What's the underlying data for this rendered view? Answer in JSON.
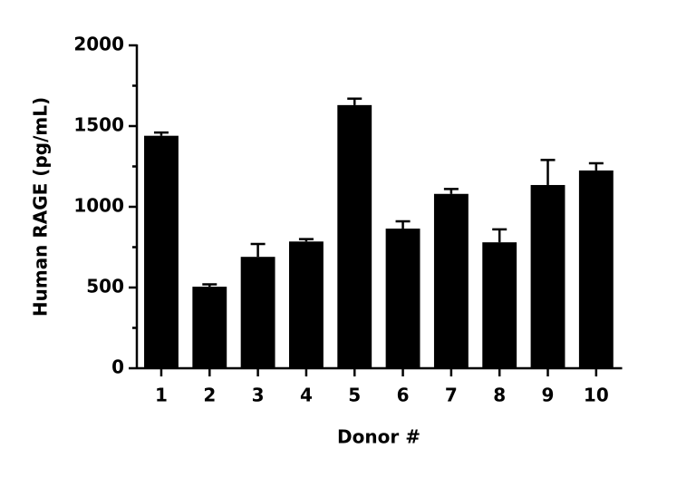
{
  "chart_data": {
    "type": "bar",
    "ylabel": "Human RAGE (pg/mL)",
    "xlabel": "Donor #",
    "categories": [
      "1",
      "2",
      "3",
      "4",
      "5",
      "6",
      "7",
      "8",
      "9",
      "10"
    ],
    "values": [
      1440,
      505,
      690,
      785,
      1630,
      865,
      1080,
      780,
      1135,
      1225
    ],
    "errors": [
      20,
      15,
      80,
      15,
      40,
      45,
      30,
      80,
      155,
      45
    ],
    "color": "#000000",
    "ylim": [
      0,
      2000
    ],
    "yticks": [
      0,
      500,
      1000,
      1500,
      2000
    ],
    "minor_yticks": [
      250,
      750,
      1250,
      1750
    ],
    "grid": false
  }
}
